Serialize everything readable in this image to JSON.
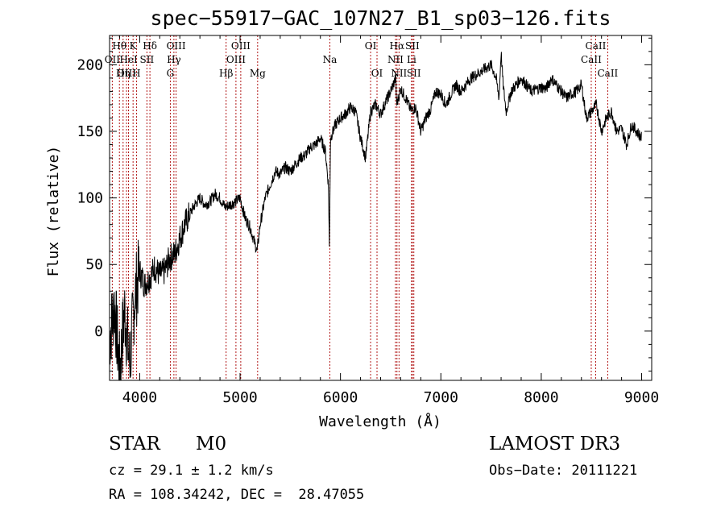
{
  "header": {
    "title": "spec−55917−GAC_107N27_B1_sp03−126.fits"
  },
  "footer": {
    "object_class": "STAR",
    "subclass": "M0",
    "catalog": "LAMOST DR3",
    "redshift": "cz = 29.1 ± 1.2 km/s",
    "obs_date": "Obs−Date: 20111221",
    "coordinates": "RA = 108.34242, DEC =  28.47055"
  },
  "chart_data": {
    "type": "line",
    "title": "spec−55917−GAC_107N27_B1_sp03−126.fits",
    "xlabel": "Wavelength (Å)",
    "ylabel": "Flux (relative)",
    "xlim": [
      3700,
      9100
    ],
    "ylim": [
      -37,
      222
    ],
    "xticks": [
      4000,
      5000,
      6000,
      7000,
      8000,
      9000
    ],
    "yticks": [
      0,
      50,
      100,
      150,
      200
    ],
    "series": [
      {
        "name": "Flux",
        "x": [
          3700,
          3750,
          3800,
          3850,
          3900,
          3950,
          4000,
          4050,
          4100,
          4150,
          4200,
          4250,
          4300,
          4350,
          4400,
          4450,
          4500,
          4550,
          4600,
          4650,
          4700,
          4750,
          4800,
          4850,
          4900,
          4950,
          5000,
          5050,
          5100,
          5150,
          5170,
          5200,
          5250,
          5300,
          5350,
          5400,
          5450,
          5500,
          5550,
          5600,
          5650,
          5700,
          5750,
          5800,
          5850,
          5880,
          5890,
          5900,
          5950,
          6000,
          6050,
          6100,
          6150,
          6200,
          6250,
          6300,
          6350,
          6400,
          6450,
          6500,
          6550,
          6560,
          6600,
          6650,
          6700,
          6750,
          6800,
          6850,
          6900,
          6950,
          7000,
          7050,
          7100,
          7150,
          7200,
          7300,
          7400,
          7500,
          7550,
          7580,
          7600,
          7620,
          7650,
          7700,
          7800,
          7900,
          8000,
          8050,
          8100,
          8150,
          8200,
          8250,
          8300,
          8350,
          8400,
          8450,
          8500,
          8550,
          8600,
          8650,
          8700,
          8750,
          8800,
          8850,
          8900,
          8950,
          9000
        ],
        "y": [
          -5,
          20,
          -30,
          15,
          -25,
          25,
          45,
          35,
          40,
          48,
          42,
          45,
          55,
          58,
          70,
          80,
          88,
          95,
          100,
          95,
          97,
          103,
          100,
          93,
          95,
          97,
          100,
          85,
          78,
          65,
          60,
          80,
          100,
          110,
          120,
          118,
          123,
          120,
          125,
          130,
          132,
          138,
          140,
          145,
          135,
          110,
          62,
          145,
          155,
          160,
          163,
          168,
          165,
          145,
          130,
          165,
          170,
          163,
          172,
          180,
          190,
          170,
          182,
          175,
          166,
          168,
          150,
          160,
          167,
          180,
          178,
          170,
          178,
          185,
          180,
          190,
          195,
          200,
          190,
          175,
          210,
          185,
          165,
          180,
          190,
          180,
          183,
          182,
          190,
          185,
          180,
          175,
          178,
          180,
          185,
          160,
          165,
          170,
          150,
          160,
          165,
          150,
          152,
          140,
          155,
          150,
          145
        ]
      }
    ],
    "annotations": [
      {
        "label": "Hθ",
        "x": 3798,
        "row": 1
      },
      {
        "label": "OII",
        "x": 3727,
        "row": 2
      },
      {
        "label": "OIII",
        "x": 3869,
        "row": 3
      },
      {
        "label": "K",
        "x": 3934,
        "row": 1
      },
      {
        "label": "HeI",
        "x": 3889,
        "row": 2
      },
      {
        "label": "Hη",
        "x": 3835,
        "row": 3
      },
      {
        "label": "SII",
        "x": 4072,
        "row": 2
      },
      {
        "label": "H",
        "x": 3968,
        "row": 3
      },
      {
        "label": "Hδ",
        "x": 4102,
        "row": 1
      },
      {
        "label": "OIII",
        "x": 4363,
        "row": 1
      },
      {
        "label": "Hγ",
        "x": 4341,
        "row": 2
      },
      {
        "label": "G",
        "x": 4305,
        "row": 3
      },
      {
        "label": "Hβ",
        "x": 4861,
        "row": 3
      },
      {
        "label": "OIII",
        "x": 5007,
        "row": 1
      },
      {
        "label": "OIII",
        "x": 4959,
        "row": 2
      },
      {
        "label": "Mg",
        "x": 5175,
        "row": 3
      },
      {
        "label": "Na",
        "x": 5894,
        "row": 2
      },
      {
        "label": "OI",
        "x": 6300,
        "row": 1
      },
      {
        "label": "OI",
        "x": 6364,
        "row": 3
      },
      {
        "label": "Hα",
        "x": 6563,
        "row": 1
      },
      {
        "label": "SII",
        "x": 6716,
        "row": 1
      },
      {
        "label": "NII",
        "x": 6548,
        "row": 2
      },
      {
        "label": "Li",
        "x": 6708,
        "row": 2
      },
      {
        "label": "NII",
        "x": 6583,
        "row": 3
      },
      {
        "label": "SII",
        "x": 6731,
        "row": 3
      },
      {
        "label": "CaII",
        "x": 8542,
        "row": 1
      },
      {
        "label": "CaII",
        "x": 8498,
        "row": 2
      },
      {
        "label": "CaII",
        "x": 8662,
        "row": 3
      }
    ],
    "line_color": "#000000",
    "marker_color": "#aa0000"
  }
}
